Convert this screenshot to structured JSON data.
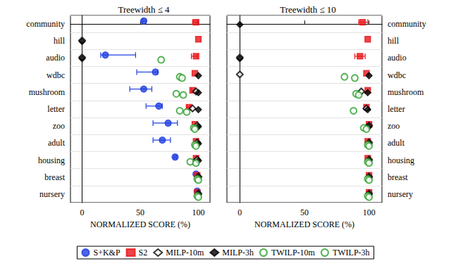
{
  "chart_data": [
    {
      "type": "scatter",
      "title": "Treewidth ≤ 4",
      "x_label": "NORMALIZED SCORE (%)",
      "categories": [
        "community",
        "hill",
        "audio",
        "wdbc",
        "mushroom",
        "letter",
        "zoo",
        "adult",
        "housing",
        "breast",
        "nursery"
      ],
      "xlim": [
        -10,
        110
      ],
      "xticks": [
        0,
        50,
        100
      ],
      "legend": "bottom",
      "series": [
        {
          "name": "S+K&P",
          "color": "#1f3fe0",
          "marker": "circle",
          "values": [
            53,
            null,
            20,
            63,
            53,
            66,
            74,
            69,
            80,
            98,
            99
          ],
          "errors": [
            [
              52,
              55
            ],
            null,
            [
              16,
              46
            ],
            [
              47,
              65
            ],
            [
              41,
              60
            ],
            [
              55,
              69
            ],
            [
              61,
              82
            ],
            [
              61,
              76
            ],
            [
              79,
              81
            ],
            null,
            null
          ]
        },
        {
          "name": "S2",
          "color": "#e8141a",
          "marker": "square",
          "values": [
            98,
            100,
            98,
            97,
            95,
            92,
            97,
            98,
            98,
            99,
            99
          ],
          "errors": [
            [
              95,
              99
            ],
            null,
            [
              94,
              99
            ],
            null,
            [
              94,
              97
            ],
            [
              90,
              93
            ],
            null,
            null,
            null,
            null,
            null
          ]
        },
        {
          "name": "MILP-10m",
          "color": "#000000",
          "marker": "open-diamond",
          "values": [
            null,
            0,
            0,
            null,
            98,
            95,
            99,
            99,
            99,
            100,
            100
          ]
        },
        {
          "name": "MILP-3h",
          "color": "#000000",
          "marker": "diamond",
          "values": [
            null,
            0,
            0,
            100,
            100,
            100,
            100,
            100,
            100,
            100,
            100
          ]
        },
        {
          "name": "TWILP-10m",
          "color": "#2ca02c",
          "marker": "open-circle",
          "values": [
            null,
            null,
            68,
            84,
            81,
            84,
            96,
            97,
            93,
            99,
            99
          ]
        },
        {
          "name": "TWILP-3h",
          "color": "#2ca02c",
          "marker": "open-circle",
          "values": [
            null,
            null,
            null,
            86,
            87,
            90,
            97,
            98,
            98,
            100,
            100
          ]
        }
      ]
    },
    {
      "type": "scatter",
      "title": "Treewidth ≤ 10",
      "x_label": "NORMALIZED SCORE (%)",
      "categories": [
        "community",
        "hill",
        "audio",
        "wdbc",
        "mushroom",
        "letter",
        "zoo",
        "adult",
        "housing",
        "breast",
        "nursery"
      ],
      "xlim": [
        -10,
        110
      ],
      "xticks": [
        0,
        50,
        100
      ],
      "series": [
        {
          "name": "S+K&P",
          "color": "#1f3fe0",
          "marker": "circle",
          "values": [
            null,
            null,
            null,
            null,
            null,
            null,
            null,
            null,
            null,
            null,
            null
          ]
        },
        {
          "name": "S2",
          "color": "#e8141a",
          "marker": "square",
          "values": [
            95,
            99,
            93,
            98,
            99,
            98,
            100,
            99,
            99,
            100,
            100
          ],
          "errors": [
            [
              92,
              99
            ],
            null,
            [
              89,
              97
            ],
            null,
            null,
            null,
            null,
            null,
            null,
            null,
            null
          ]
        },
        {
          "name": "MILP-10m",
          "color": "#000000",
          "marker": "open-diamond",
          "values": [
            null,
            null,
            0,
            0,
            94,
            98,
            100,
            100,
            100,
            100,
            100
          ]
        },
        {
          "name": "MILP-3h",
          "color": "#000000",
          "marker": "diamond",
          "values": [
            0,
            null,
            0,
            100,
            99,
            99,
            100,
            100,
            100,
            100,
            100
          ]
        },
        {
          "name": "TWILP-10m",
          "color": "#2ca02c",
          "marker": "open-circle",
          "values": [
            null,
            null,
            null,
            81,
            90,
            88,
            96,
            99,
            99,
            99,
            99
          ]
        },
        {
          "name": "TWILP-3h",
          "color": "#2ca02c",
          "marker": "open-circle",
          "values": [
            null,
            null,
            null,
            89,
            92,
            null,
            98,
            100,
            100,
            100,
            100
          ]
        }
      ]
    }
  ]
}
